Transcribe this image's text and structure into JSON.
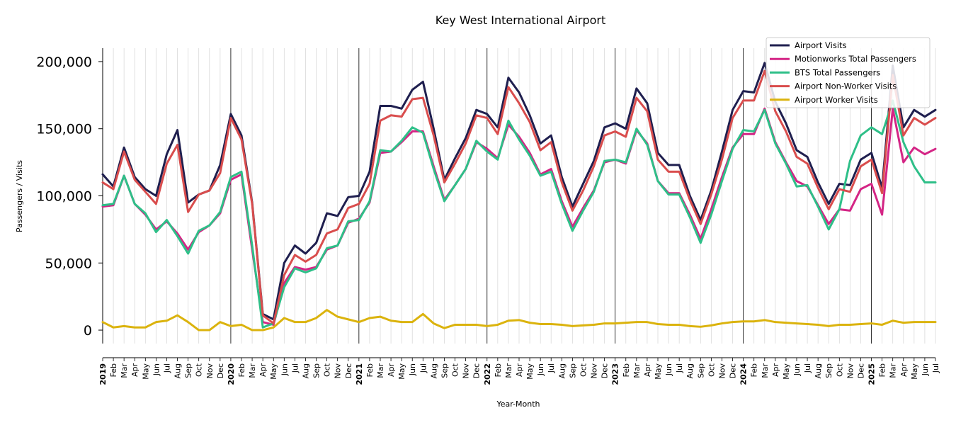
{
  "chart_data": {
    "type": "line",
    "title": "Key West International Airport",
    "xlabel": "Year-Month",
    "ylabel": "Passengers / Visits",
    "ylim": [
      -10000,
      210000
    ],
    "yticks": [
      0,
      50000,
      100000,
      150000,
      200000
    ],
    "ytick_labels": [
      "0",
      "50,000",
      "100,000",
      "150,000",
      "200,000"
    ],
    "legend_position": "top-right",
    "grid": "vertical",
    "x": [
      "2019",
      "Feb",
      "Mar",
      "Apr",
      "May",
      "Jun",
      "Jul",
      "Aug",
      "Sep",
      "Oct",
      "Nov",
      "Dec",
      "2020",
      "Feb",
      "Mar",
      "Apr",
      "May",
      "Jun",
      "Jul",
      "Aug",
      "Sep",
      "Oct",
      "Nov",
      "Dec",
      "2021",
      "Feb",
      "Mar",
      "Apr",
      "May",
      "Jun",
      "Jul",
      "Aug",
      "Sep",
      "Oct",
      "Nov",
      "Dec",
      "2022",
      "Feb",
      "Mar",
      "Apr",
      "May",
      "Jun",
      "Jul",
      "Aug",
      "Sep",
      "Oct",
      "Nov",
      "Dec",
      "2023",
      "Feb",
      "Mar",
      "Apr",
      "May",
      "Jun",
      "Jul",
      "Aug",
      "Sep",
      "Oct",
      "Nov",
      "Dec",
      "2024",
      "Feb",
      "Mar",
      "Apr",
      "May",
      "Jun",
      "Jul",
      "Aug",
      "Sep",
      "Oct",
      "Nov",
      "Dec",
      "2025",
      "Feb",
      "Mar",
      "Apr",
      "May",
      "Jun",
      "Jul"
    ],
    "year_ticks": [
      "2019",
      "2020",
      "2021",
      "2022",
      "2023",
      "2024",
      "2025"
    ],
    "series": [
      {
        "name": "Airport Visits",
        "color": "#1f1f4f",
        "values": [
          116000,
          107000,
          136000,
          114000,
          105000,
          100000,
          131000,
          149000,
          95000,
          101000,
          104000,
          123000,
          161000,
          145000,
          95000,
          12000,
          8000,
          50000,
          63000,
          57000,
          65000,
          87000,
          85000,
          99000,
          100000,
          118000,
          167000,
          167000,
          165000,
          179000,
          185000,
          150000,
          112000,
          128000,
          143000,
          164000,
          161000,
          151000,
          188000,
          177000,
          160000,
          139000,
          145000,
          114000,
          92000,
          109000,
          126000,
          151000,
          154000,
          150000,
          180000,
          169000,
          132000,
          123000,
          123000,
          100000,
          82000,
          104000,
          133000,
          164000,
          178000,
          177000,
          199000,
          170000,
          154000,
          134000,
          129000,
          110000,
          94000,
          109000,
          108000,
          127000,
          132000,
          106000,
          197000,
          151000,
          164000,
          159000,
          164000
        ]
      },
      {
        "name": "Motionworks Total Passengers",
        "color": "#d42585",
        "values": [
          92000,
          93000,
          115000,
          94000,
          86000,
          75000,
          81000,
          72000,
          60000,
          73000,
          78000,
          87000,
          112000,
          116000,
          60000,
          6000,
          4000,
          35000,
          47000,
          45000,
          47000,
          60000,
          63000,
          80000,
          83000,
          95000,
          132000,
          133000,
          140000,
          148000,
          148000,
          122000,
          97000,
          108000,
          120000,
          140000,
          135000,
          128000,
          153000,
          144000,
          132000,
          116000,
          120000,
          96000,
          77000,
          91000,
          104000,
          125000,
          127000,
          124000,
          149000,
          139000,
          111000,
          102000,
          102000,
          86000,
          68000,
          90000,
          114000,
          136000,
          146000,
          146000,
          165000,
          140000,
          125000,
          111000,
          107000,
          93000,
          79000,
          90000,
          89000,
          105000,
          109000,
          86000,
          165000,
          125000,
          136000,
          131000,
          135000
        ]
      },
      {
        "name": "BTS Total Passengers",
        "color": "#2ebf88",
        "values": [
          93000,
          94000,
          115000,
          94000,
          87000,
          73000,
          82000,
          70000,
          57000,
          74000,
          78000,
          88000,
          114000,
          118000,
          63000,
          2000,
          5000,
          32000,
          46000,
          43000,
          46000,
          61000,
          63000,
          81000,
          82000,
          96000,
          134000,
          133000,
          141000,
          151000,
          147000,
          120000,
          96000,
          108000,
          120000,
          141000,
          133000,
          127000,
          156000,
          142000,
          130000,
          115000,
          118000,
          94000,
          74000,
          89000,
          103000,
          126000,
          127000,
          125000,
          150000,
          138000,
          111000,
          101000,
          101000,
          84000,
          65000,
          86000,
          111000,
          135000,
          149000,
          148000,
          164000,
          139000,
          124000,
          107000,
          108000,
          92000,
          75000,
          90000,
          126000,
          145000,
          151000,
          146000,
          171000,
          140000,
          122000,
          110000,
          110000
        ]
      },
      {
        "name": "Airport Non-Worker Visits",
        "color": "#d94d4d",
        "values": [
          110000,
          105000,
          133000,
          112000,
          103000,
          94000,
          124000,
          138000,
          88000,
          101000,
          104000,
          117000,
          158000,
          142000,
          94000,
          11000,
          5000,
          41000,
          56000,
          51000,
          56000,
          72000,
          75000,
          91000,
          94000,
          109000,
          156000,
          160000,
          159000,
          172000,
          173000,
          145000,
          110000,
          124000,
          139000,
          160000,
          158000,
          146000,
          181000,
          169000,
          155000,
          134000,
          140000,
          110000,
          89000,
          104000,
          122000,
          145000,
          148000,
          144000,
          173000,
          163000,
          127000,
          118000,
          118000,
          97000,
          79000,
          101000,
          127000,
          158000,
          171000,
          171000,
          193000,
          163000,
          148000,
          129000,
          124000,
          106000,
          90000,
          105000,
          103000,
          122000,
          127000,
          102000,
          190000,
          145000,
          158000,
          153000,
          158000
        ]
      },
      {
        "name": "Airport Worker Visits",
        "color": "#dbb30d",
        "values": [
          6000,
          2000,
          3000,
          2000,
          2000,
          6000,
          7000,
          11000,
          6000,
          0,
          0,
          6000,
          3000,
          4000,
          0,
          0,
          2000,
          9000,
          6000,
          6000,
          9000,
          15000,
          10000,
          8000,
          6000,
          9000,
          10000,
          7000,
          6000,
          6000,
          12000,
          5000,
          1500,
          4000,
          4000,
          4000,
          3000,
          4000,
          7000,
          7500,
          5500,
          4500,
          4500,
          4000,
          3000,
          3500,
          4000,
          5000,
          5000,
          5500,
          6000,
          6000,
          4500,
          4000,
          4000,
          3000,
          2500,
          3500,
          5000,
          6000,
          6500,
          6500,
          7500,
          6000,
          5500,
          5000,
          4500,
          4000,
          3000,
          4000,
          4000,
          4500,
          5000,
          4000,
          7000,
          5500,
          6000,
          6000,
          6000
        ]
      }
    ]
  }
}
